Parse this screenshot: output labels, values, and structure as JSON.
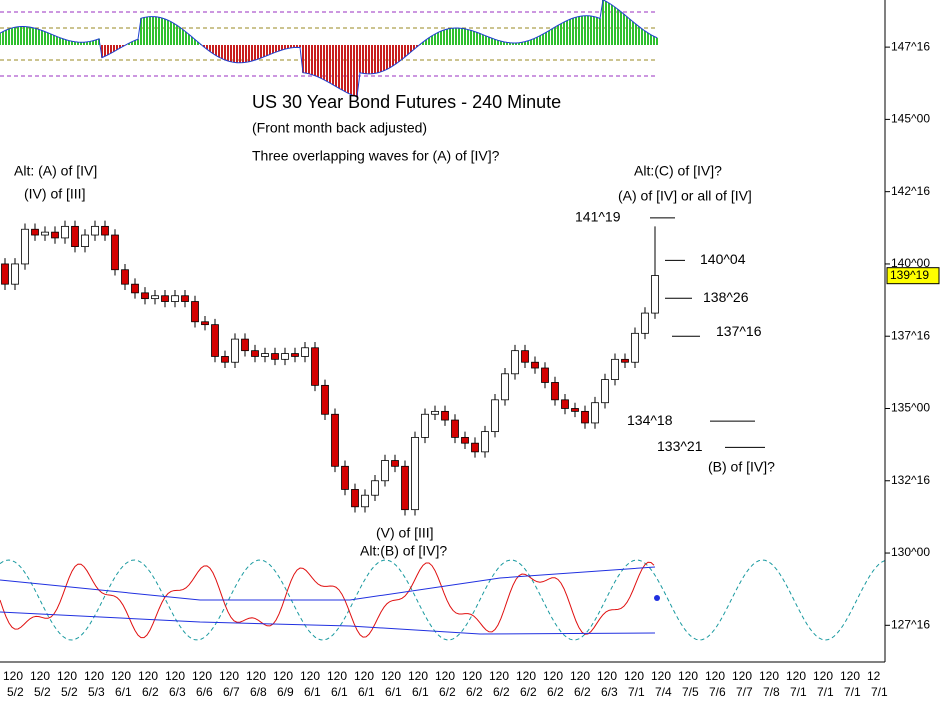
{
  "chart_data": {
    "type": "candlestick",
    "title": "US 30 Year Bond Futures - 240 Minute",
    "subtitle": "(Front month back adjusted)",
    "annotations": [
      "Three overlapping waves for (A) of [IV]?",
      "Alt: (A) of [IV]",
      "(IV) of [III]",
      "Alt:(C) of [IV]?",
      "(A) of [IV] or all of [IV]",
      "(V) of [III]",
      "Alt:(B) of [IV]?",
      "(B) of [IV]?"
    ],
    "open": [
      140.0,
      139.3,
      140.0,
      141.2,
      141.0,
      141.1,
      140.9,
      141.3,
      140.6,
      141.0,
      141.3,
      141.0,
      139.8,
      139.3,
      139.0,
      138.8,
      138.9,
      138.7,
      138.9,
      138.7,
      138.0,
      137.9,
      136.8,
      136.6,
      137.4,
      137.0,
      136.8,
      136.9,
      136.7,
      136.9,
      136.8,
      137.1,
      135.8,
      134.8,
      133.0,
      132.2,
      131.6,
      132.0,
      132.5,
      133.2,
      133.0,
      131.5,
      134.0,
      134.8,
      134.9,
      134.6,
      134.0,
      133.8,
      133.5,
      134.2,
      135.3,
      136.2,
      137.0,
      136.6,
      136.4,
      135.9,
      135.3,
      135.0,
      134.9,
      134.5,
      135.2,
      136.0,
      136.7,
      136.6,
      137.6,
      138.3
    ],
    "high": [
      140.2,
      140.2,
      141.4,
      141.4,
      141.3,
      141.3,
      141.5,
      141.5,
      141.2,
      141.5,
      141.5,
      141.2,
      140.0,
      139.5,
      139.2,
      139.1,
      139.1,
      139.1,
      139.1,
      138.9,
      138.2,
      138.1,
      137.0,
      137.6,
      137.6,
      137.2,
      137.1,
      137.1,
      137.1,
      137.1,
      137.3,
      137.3,
      136.0,
      135.0,
      133.2,
      132.4,
      132.2,
      132.7,
      133.4,
      133.4,
      133.2,
      134.2,
      135.0,
      135.1,
      135.1,
      134.8,
      134.2,
      134.0,
      134.4,
      135.5,
      136.4,
      137.2,
      137.2,
      136.8,
      136.6,
      136.1,
      135.5,
      135.2,
      135.1,
      135.4,
      136.2,
      136.9,
      136.9,
      137.8,
      138.5,
      141.3
    ],
    "low": [
      139.1,
      139.1,
      139.8,
      140.8,
      140.8,
      140.7,
      140.7,
      140.4,
      140.4,
      140.8,
      140.8,
      139.6,
      139.1,
      138.8,
      138.6,
      138.6,
      138.5,
      138.5,
      138.5,
      137.8,
      137.7,
      136.6,
      136.4,
      136.4,
      136.8,
      136.6,
      136.6,
      136.5,
      136.5,
      136.6,
      136.6,
      135.6,
      134.6,
      132.8,
      132.0,
      131.4,
      131.4,
      131.8,
      132.3,
      132.8,
      131.3,
      131.3,
      133.8,
      134.6,
      134.4,
      133.8,
      133.6,
      133.3,
      133.3,
      134.0,
      135.1,
      136.0,
      136.4,
      136.2,
      135.7,
      135.1,
      134.8,
      134.7,
      134.3,
      134.3,
      135.0,
      135.8,
      136.4,
      136.4,
      137.4,
      138.1
    ],
    "close": [
      139.3,
      140.0,
      141.2,
      141.0,
      141.1,
      140.9,
      141.3,
      140.6,
      141.0,
      141.3,
      141.0,
      139.8,
      139.3,
      139.0,
      138.8,
      138.9,
      138.7,
      138.9,
      138.7,
      138.0,
      137.9,
      136.8,
      136.6,
      137.4,
      137.0,
      136.8,
      136.9,
      136.7,
      136.9,
      136.8,
      137.1,
      135.8,
      134.8,
      133.0,
      132.2,
      131.6,
      132.0,
      132.5,
      133.2,
      133.0,
      131.5,
      134.0,
      134.8,
      134.9,
      134.6,
      134.0,
      133.8,
      133.5,
      134.2,
      135.3,
      136.2,
      137.0,
      136.6,
      136.4,
      135.9,
      135.3,
      135.0,
      134.9,
      134.5,
      135.2,
      136.0,
      136.7,
      136.6,
      137.6,
      138.3,
      139.6
    ],
    "up_color": "#ffffff",
    "down_color": "#d40000",
    "levels": [
      {
        "value": 141.59375,
        "label": "141^19"
      },
      {
        "value": 140.125,
        "label": "140^04"
      },
      {
        "value": 138.8125,
        "label": "138^26"
      },
      {
        "value": 137.5,
        "label": "137^16"
      },
      {
        "value": 134.5625,
        "label": "134^18"
      },
      {
        "value": 133.65625,
        "label": "133^21"
      }
    ],
    "last_price": {
      "value": 139.59375,
      "label": "139^19"
    },
    "ylim": [
      126.3,
      149.13
    ],
    "yticks": [
      {
        "value": 147.5,
        "label": "147^16"
      },
      {
        "value": 145,
        "label": "145^00"
      },
      {
        "value": 142.5,
        "label": "142^16"
      },
      {
        "value": 140,
        "label": "140^00"
      },
      {
        "value": 137.5,
        "label": "137^16"
      },
      {
        "value": 135,
        "label": "135^00"
      },
      {
        "value": 132.5,
        "label": "132^16"
      },
      {
        "value": 130,
        "label": "130^00"
      },
      {
        "value": 127.5,
        "label": "127^16"
      }
    ],
    "x_time_labels": [
      "120",
      "120",
      "120",
      "120",
      "120",
      "120",
      "120",
      "120",
      "120",
      "120",
      "120",
      "120",
      "120",
      "120",
      "120",
      "120",
      "120",
      "120",
      "120",
      "120",
      "120",
      "120",
      "120",
      "120",
      "120",
      "120",
      "120",
      "120",
      "120",
      "120",
      "120",
      "120",
      "12"
    ],
    "x_date_labels": [
      "5/2",
      "5/2",
      "5/2",
      "5/3",
      "6/1",
      "6/2",
      "6/3",
      "6/6",
      "6/7",
      "6/8",
      "6/9",
      "6/1",
      "6/1",
      "6/1",
      "6/1",
      "6/1",
      "6/2",
      "6/2",
      "6/2",
      "6/2",
      "6/2",
      "6/2",
      "6/3",
      "7/1",
      "7/4",
      "7/5",
      "7/6",
      "7/7",
      "7/8",
      "7/1",
      "7/1",
      "7/1",
      "7/1"
    ]
  }
}
